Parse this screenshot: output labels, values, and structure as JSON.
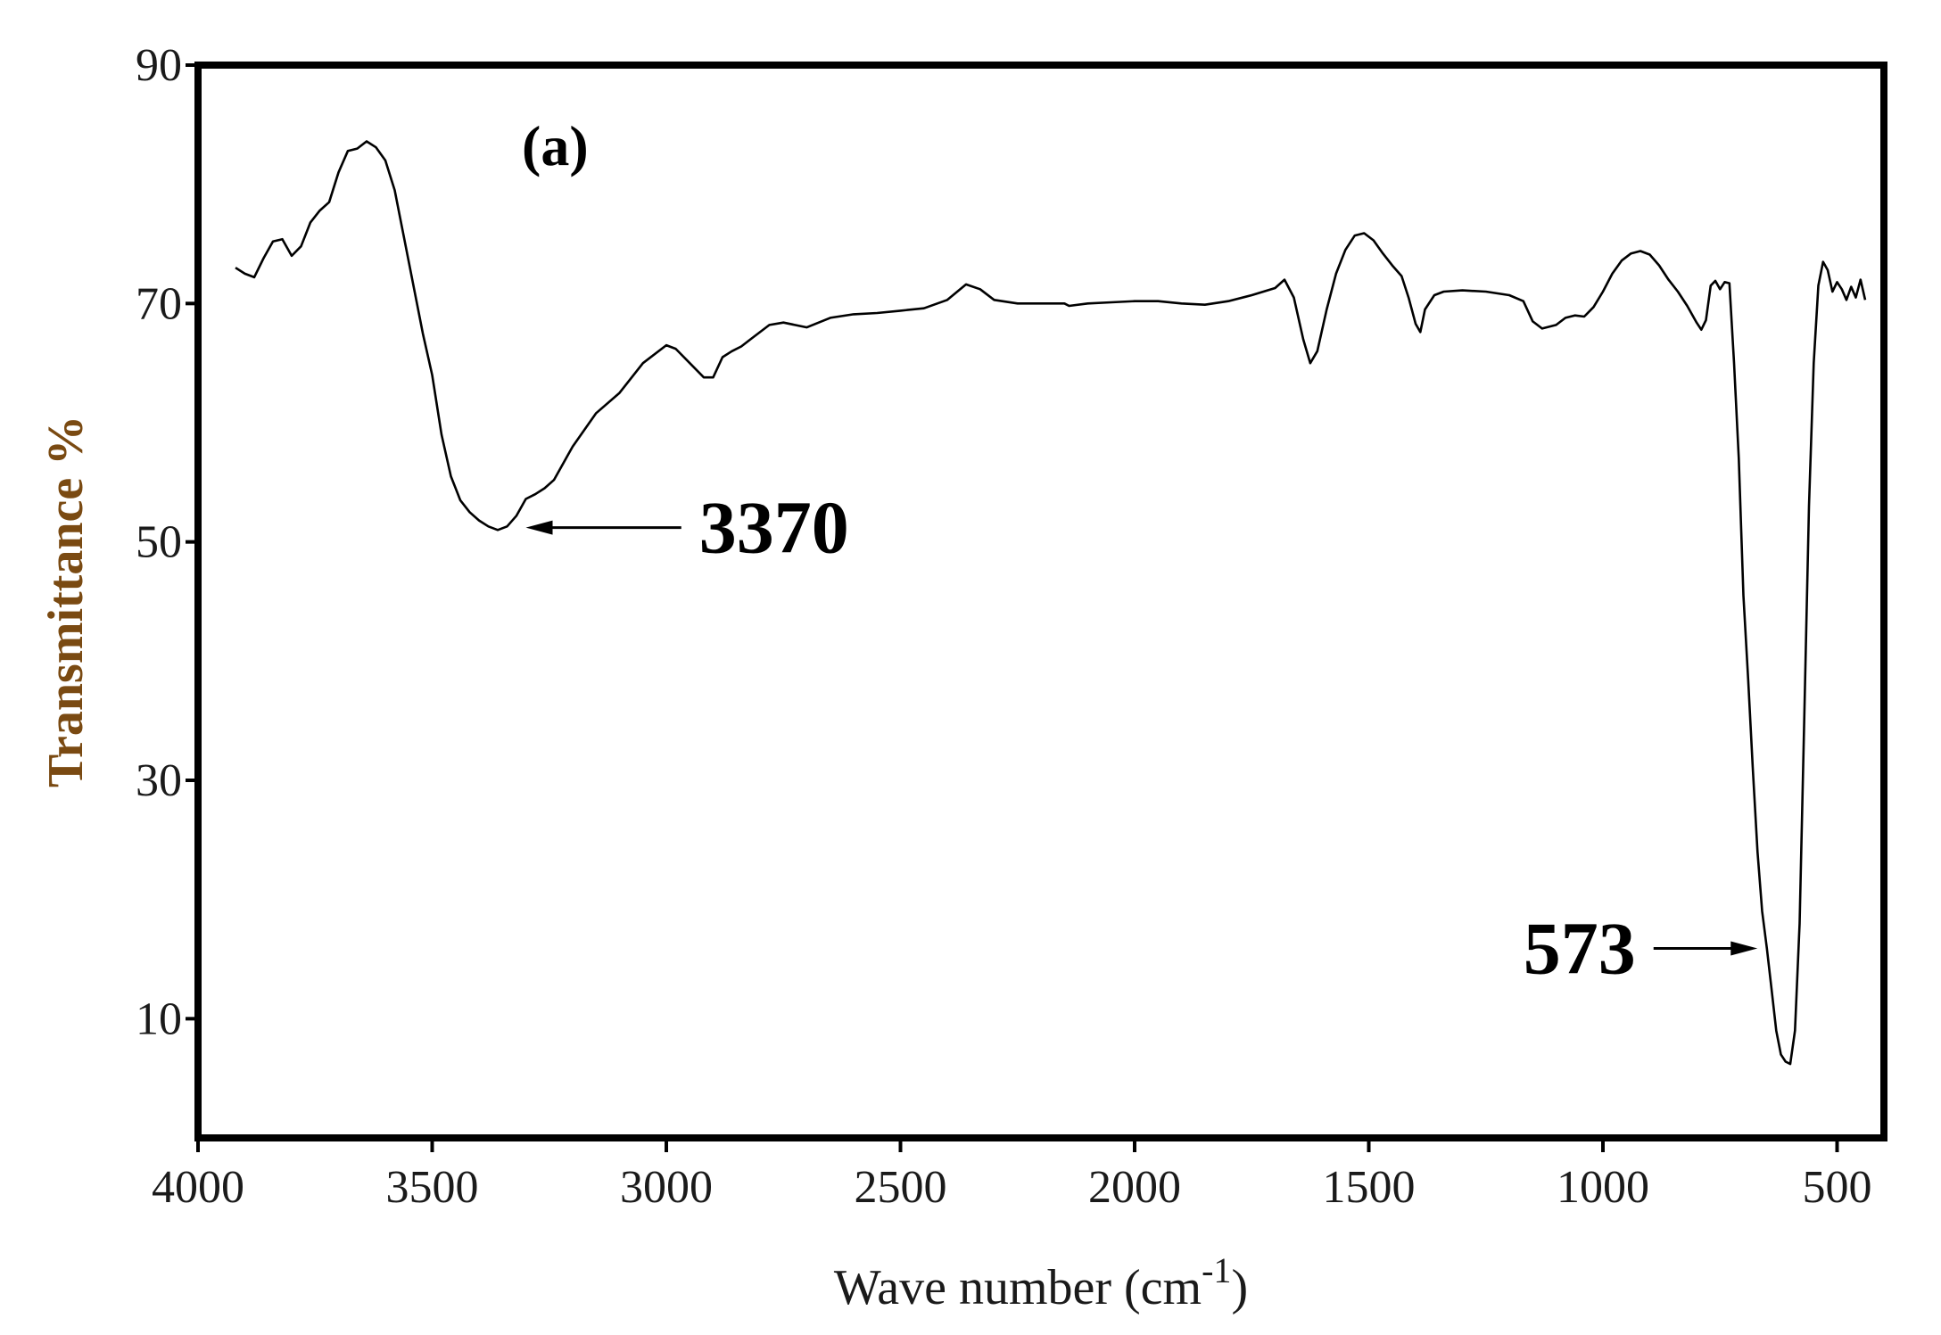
{
  "chart_data": {
    "type": "line",
    "panel_label": "(a)",
    "xlabel": "Wave number (cm",
    "xlabel_superscript": "-1",
    "xlabel_suffix": ")",
    "ylabel": "Transmittance %",
    "ylabel_color": "#7a4a12",
    "line_color": "#000000",
    "xlim": [
      4000,
      400
    ],
    "ylim": [
      0,
      90
    ],
    "x_ticks": [
      4000,
      3500,
      3000,
      2500,
      2000,
      1500,
      1000,
      500
    ],
    "y_ticks": [
      10,
      30,
      50,
      70,
      90
    ],
    "grid": false,
    "annotations": [
      {
        "text": "3370",
        "arrow_to": [
          3300,
          51.2
        ],
        "label_at": [
          2930,
          51.2
        ],
        "label_side": "right"
      },
      {
        "text": "573",
        "arrow_to": [
          670,
          15.9
        ],
        "label_at": [
          930,
          15.9
        ],
        "label_side": "left"
      }
    ],
    "series": [
      {
        "x": [
          3920,
          3900,
          3880,
          3860,
          3840,
          3820,
          3800,
          3780,
          3760,
          3740,
          3720,
          3700,
          3680,
          3660,
          3640,
          3620,
          3600,
          3580,
          3560,
          3540,
          3520,
          3500,
          3480,
          3460,
          3440,
          3420,
          3400,
          3380,
          3360,
          3340,
          3320,
          3300,
          3280,
          3260,
          3240,
          3200,
          3150,
          3100,
          3050,
          3000,
          2980,
          2950,
          2920,
          2900,
          2880,
          2860,
          2840,
          2820,
          2800,
          2780,
          2750,
          2700,
          2650,
          2600,
          2550,
          2500,
          2450,
          2400,
          2360,
          2330,
          2300,
          2250,
          2200,
          2150,
          2140,
          2100,
          2050,
          2000,
          1950,
          1900,
          1850,
          1800,
          1750,
          1700,
          1680,
          1660,
          1640,
          1625,
          1610,
          1590,
          1570,
          1550,
          1530,
          1510,
          1490,
          1470,
          1450,
          1430,
          1415,
          1400,
          1390,
          1380,
          1360,
          1340,
          1300,
          1250,
          1200,
          1170,
          1150,
          1130,
          1100,
          1080,
          1060,
          1040,
          1020,
          1000,
          980,
          960,
          940,
          920,
          900,
          880,
          860,
          840,
          820,
          800,
          790,
          780,
          770,
          760,
          750,
          740,
          730,
          720,
          710,
          700,
          690,
          680,
          670,
          660,
          650,
          640,
          630,
          620,
          610,
          600,
          590,
          580,
          570,
          560,
          550,
          540,
          530,
          520,
          510,
          500,
          490,
          480,
          470,
          460,
          450,
          440
        ],
        "y": [
          73,
          72.5,
          72.2,
          73.8,
          75.2,
          75.4,
          74,
          74.8,
          76.8,
          77.8,
          78.5,
          81,
          82.8,
          83,
          83.6,
          83.1,
          82,
          79.5,
          75.5,
          71.5,
          67.5,
          64,
          59,
          55.5,
          53.5,
          52.5,
          51.8,
          51.3,
          51,
          51.3,
          52.2,
          53.6,
          54,
          54.5,
          55.2,
          58,
          60.8,
          62.5,
          65,
          66.5,
          66.2,
          65,
          63.8,
          63.8,
          65.5,
          66,
          66.4,
          67,
          67.6,
          68.2,
          68.4,
          68,
          68.8,
          69.1,
          69.2,
          69.4,
          69.6,
          70.3,
          71.6,
          71.2,
          70.3,
          70,
          70,
          70,
          69.8,
          70,
          70.1,
          70.2,
          70.2,
          70,
          69.9,
          70.2,
          70.7,
          71.3,
          72,
          70.5,
          67,
          65,
          66,
          69.5,
          72.5,
          74.5,
          75.7,
          75.9,
          75.3,
          74.2,
          73.2,
          72.3,
          70.5,
          68.3,
          67.6,
          69.5,
          70.7,
          71,
          71.1,
          71,
          70.7,
          70.2,
          68.5,
          67.9,
          68.2,
          68.8,
          69,
          68.9,
          69.7,
          71,
          72.5,
          73.6,
          74.2,
          74.4,
          74.1,
          73.2,
          72,
          71,
          69.8,
          68.4,
          67.8,
          68.6,
          71.5,
          71.9,
          71.2,
          71.8,
          71.7,
          65,
          57,
          45.5,
          38.5,
          31,
          24,
          19,
          15.9,
          12.5,
          9,
          7,
          6.4,
          6.2,
          9,
          18,
          35.5,
          53,
          65,
          71.5,
          73.5,
          72.8,
          71,
          71.8,
          71.2,
          70.3,
          71.4,
          70.5,
          72,
          70.3
        ]
      }
    ]
  }
}
